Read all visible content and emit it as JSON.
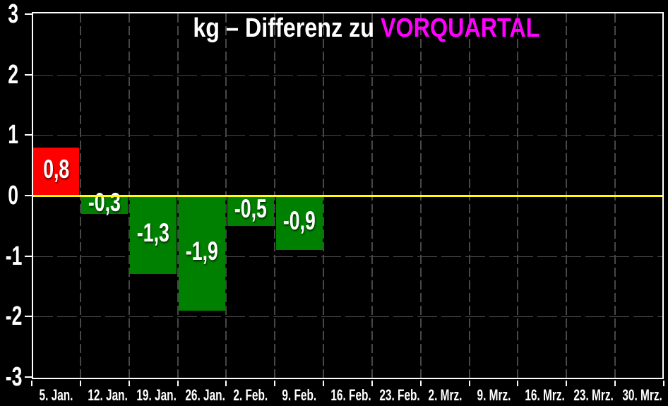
{
  "title": {
    "prefix": "kg – Differenz zu ",
    "highlight": "VORQUARTAL"
  },
  "colors": {
    "background": "#000000",
    "spine": "#ffffff",
    "grid": "#474747",
    "zero_line": "#ffff00",
    "positive_bar": "#ff0000",
    "negative_bar": "#008000",
    "axis_label": "#ffffff",
    "bar_label": "#ffffff",
    "title_text": "#ffffff",
    "title_highlight": "#ff00ff"
  },
  "chart_data": {
    "type": "bar",
    "title": "kg – Differenz zu VORQUARTAL",
    "categories": [
      "5. Jan.",
      "12. Jan.",
      "19. Jan.",
      "26. Jan.",
      "2. Feb.",
      "9. Feb.",
      "16. Feb.",
      "23. Feb.",
      "2. Mrz.",
      "9. Mrz.",
      "16. Mrz.",
      "23. Mrz.",
      "30. Mrz."
    ],
    "values": [
      0.8,
      -0.3,
      -1.3,
      -1.9,
      -0.5,
      -0.9,
      null,
      null,
      null,
      null,
      null,
      null,
      null
    ],
    "value_labels": [
      "0,8",
      "-0,3",
      "-1,3",
      "-1,9",
      "-0,5",
      "-0,9",
      null,
      null,
      null,
      null,
      null,
      null,
      null
    ],
    "xlabel": "",
    "ylabel": "",
    "ylim": [
      -3,
      3
    ],
    "y_ticks": [
      3,
      2,
      1,
      0,
      -1,
      -2,
      -3
    ],
    "y_tick_labels": [
      "3",
      "2",
      "1",
      "0",
      "-1",
      "-2",
      "-3"
    ],
    "grid": true,
    "grid_style": "dashed",
    "zero_line": true,
    "legend": false,
    "bar_color_rule": "positive bars red, negative bars green",
    "decimal_separator": ","
  }
}
